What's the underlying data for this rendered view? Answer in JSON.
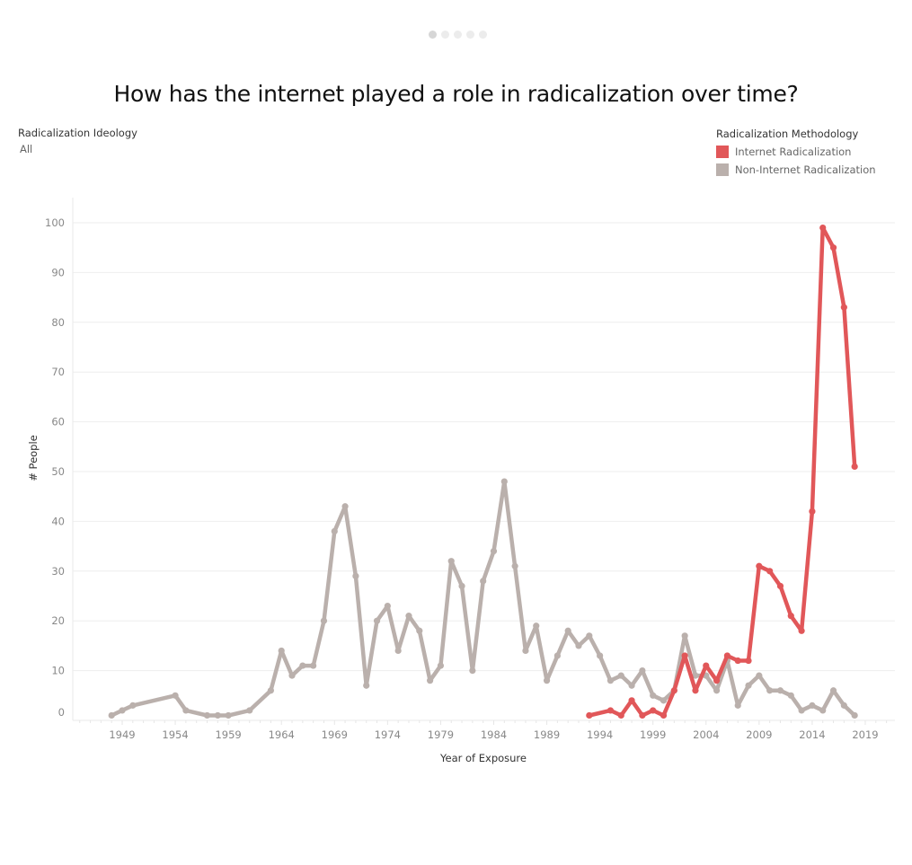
{
  "pager": {
    "count": 5,
    "active_index": 0
  },
  "title": "How has the internet played a role in radicalization over time?",
  "filter": {
    "label": "Radicalization Ideology",
    "value": "All"
  },
  "legend": {
    "title": "Radicalization Methodology",
    "items": [
      {
        "label": "Internet Radicalization",
        "color": "#E15759"
      },
      {
        "label": "Non-Internet Radicalization",
        "color": "#BAB0AC"
      }
    ]
  },
  "chart_data": {
    "type": "line",
    "title": "How has the internet played a role in radicalization over time?",
    "xlabel": "Year of Exposure",
    "ylabel": "# People",
    "xlim": [
      1948,
      2019
    ],
    "ylim": [
      0,
      100
    ],
    "x_ticks": [
      1949,
      1954,
      1959,
      1964,
      1969,
      1974,
      1979,
      1984,
      1989,
      1994,
      1999,
      2004,
      2009,
      2014,
      2019
    ],
    "y_ticks": [
      0,
      10,
      20,
      30,
      40,
      50,
      60,
      70,
      80,
      90,
      100
    ],
    "grid": true,
    "legend_position": "top-right",
    "series": [
      {
        "name": "Internet Radicalization",
        "color": "#E15759",
        "points": [
          [
            1993,
            1
          ],
          [
            1995,
            2
          ],
          [
            1996,
            1
          ],
          [
            1997,
            4
          ],
          [
            1998,
            1
          ],
          [
            1999,
            2
          ],
          [
            2000,
            1
          ],
          [
            2001,
            6
          ],
          [
            2002,
            13
          ],
          [
            2003,
            6
          ],
          [
            2004,
            11
          ],
          [
            2005,
            8
          ],
          [
            2006,
            13
          ],
          [
            2007,
            12
          ],
          [
            2008,
            12
          ],
          [
            2009,
            31
          ],
          [
            2010,
            30
          ],
          [
            2011,
            27
          ],
          [
            2012,
            21
          ],
          [
            2013,
            18
          ],
          [
            2014,
            42
          ],
          [
            2015,
            99
          ],
          [
            2016,
            95
          ],
          [
            2017,
            83
          ],
          [
            2018,
            51
          ]
        ]
      },
      {
        "name": "Non-Internet Radicalization",
        "color": "#BAB0AC",
        "points": [
          [
            1948,
            1
          ],
          [
            1949,
            2
          ],
          [
            1950,
            3
          ],
          [
            1954,
            5
          ],
          [
            1955,
            2
          ],
          [
            1957,
            1
          ],
          [
            1958,
            1
          ],
          [
            1959,
            1
          ],
          [
            1961,
            2
          ],
          [
            1963,
            6
          ],
          [
            1964,
            14
          ],
          [
            1965,
            9
          ],
          [
            1966,
            11
          ],
          [
            1967,
            11
          ],
          [
            1968,
            20
          ],
          [
            1969,
            38
          ],
          [
            1970,
            43
          ],
          [
            1971,
            29
          ],
          [
            1972,
            7
          ],
          [
            1973,
            20
          ],
          [
            1974,
            23
          ],
          [
            1975,
            14
          ],
          [
            1976,
            21
          ],
          [
            1977,
            18
          ],
          [
            1978,
            8
          ],
          [
            1979,
            11
          ],
          [
            1980,
            32
          ],
          [
            1981,
            27
          ],
          [
            1982,
            10
          ],
          [
            1983,
            28
          ],
          [
            1984,
            34
          ],
          [
            1985,
            48
          ],
          [
            1986,
            31
          ],
          [
            1987,
            14
          ],
          [
            1988,
            19
          ],
          [
            1989,
            8
          ],
          [
            1990,
            13
          ],
          [
            1991,
            18
          ],
          [
            1992,
            15
          ],
          [
            1993,
            17
          ],
          [
            1994,
            13
          ],
          [
            1995,
            8
          ],
          [
            1996,
            9
          ],
          [
            1997,
            7
          ],
          [
            1998,
            10
          ],
          [
            1999,
            5
          ],
          [
            2000,
            4
          ],
          [
            2001,
            6
          ],
          [
            2002,
            17
          ],
          [
            2003,
            9
          ],
          [
            2004,
            9
          ],
          [
            2005,
            6
          ],
          [
            2006,
            12
          ],
          [
            2007,
            3
          ],
          [
            2008,
            7
          ],
          [
            2009,
            9
          ],
          [
            2010,
            6
          ],
          [
            2011,
            6
          ],
          [
            2012,
            5
          ],
          [
            2013,
            2
          ],
          [
            2014,
            3
          ],
          [
            2015,
            2
          ],
          [
            2016,
            6
          ],
          [
            2017,
            3
          ],
          [
            2018,
            1
          ]
        ]
      }
    ]
  }
}
